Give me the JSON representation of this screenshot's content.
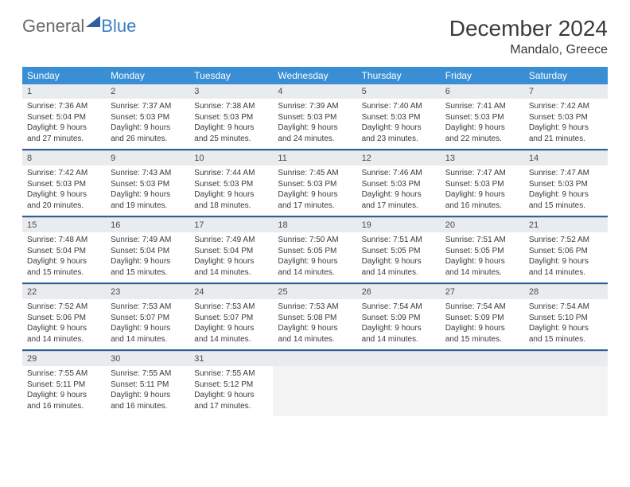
{
  "logo": {
    "text1": "General",
    "text2": "Blue"
  },
  "title": "December 2024",
  "location": "Mandalo, Greece",
  "colors": {
    "header_bg": "#3a8fd4",
    "header_text": "#ffffff",
    "daynum_bg": "#e9ecef",
    "row_divider": "#2d5f9a",
    "body_text": "#3a3a3a",
    "logo_gray": "#6a6a6a",
    "logo_blue": "#3a7fc4"
  },
  "day_headers": [
    "Sunday",
    "Monday",
    "Tuesday",
    "Wednesday",
    "Thursday",
    "Friday",
    "Saturday"
  ],
  "weeks": [
    [
      {
        "num": "1",
        "sunrise": "7:36 AM",
        "sunset": "5:04 PM",
        "daylight": "9 hours and 27 minutes."
      },
      {
        "num": "2",
        "sunrise": "7:37 AM",
        "sunset": "5:03 PM",
        "daylight": "9 hours and 26 minutes."
      },
      {
        "num": "3",
        "sunrise": "7:38 AM",
        "sunset": "5:03 PM",
        "daylight": "9 hours and 25 minutes."
      },
      {
        "num": "4",
        "sunrise": "7:39 AM",
        "sunset": "5:03 PM",
        "daylight": "9 hours and 24 minutes."
      },
      {
        "num": "5",
        "sunrise": "7:40 AM",
        "sunset": "5:03 PM",
        "daylight": "9 hours and 23 minutes."
      },
      {
        "num": "6",
        "sunrise": "7:41 AM",
        "sunset": "5:03 PM",
        "daylight": "9 hours and 22 minutes."
      },
      {
        "num": "7",
        "sunrise": "7:42 AM",
        "sunset": "5:03 PM",
        "daylight": "9 hours and 21 minutes."
      }
    ],
    [
      {
        "num": "8",
        "sunrise": "7:42 AM",
        "sunset": "5:03 PM",
        "daylight": "9 hours and 20 minutes."
      },
      {
        "num": "9",
        "sunrise": "7:43 AM",
        "sunset": "5:03 PM",
        "daylight": "9 hours and 19 minutes."
      },
      {
        "num": "10",
        "sunrise": "7:44 AM",
        "sunset": "5:03 PM",
        "daylight": "9 hours and 18 minutes."
      },
      {
        "num": "11",
        "sunrise": "7:45 AM",
        "sunset": "5:03 PM",
        "daylight": "9 hours and 17 minutes."
      },
      {
        "num": "12",
        "sunrise": "7:46 AM",
        "sunset": "5:03 PM",
        "daylight": "9 hours and 17 minutes."
      },
      {
        "num": "13",
        "sunrise": "7:47 AM",
        "sunset": "5:03 PM",
        "daylight": "9 hours and 16 minutes."
      },
      {
        "num": "14",
        "sunrise": "7:47 AM",
        "sunset": "5:03 PM",
        "daylight": "9 hours and 15 minutes."
      }
    ],
    [
      {
        "num": "15",
        "sunrise": "7:48 AM",
        "sunset": "5:04 PM",
        "daylight": "9 hours and 15 minutes."
      },
      {
        "num": "16",
        "sunrise": "7:49 AM",
        "sunset": "5:04 PM",
        "daylight": "9 hours and 15 minutes."
      },
      {
        "num": "17",
        "sunrise": "7:49 AM",
        "sunset": "5:04 PM",
        "daylight": "9 hours and 14 minutes."
      },
      {
        "num": "18",
        "sunrise": "7:50 AM",
        "sunset": "5:05 PM",
        "daylight": "9 hours and 14 minutes."
      },
      {
        "num": "19",
        "sunrise": "7:51 AM",
        "sunset": "5:05 PM",
        "daylight": "9 hours and 14 minutes."
      },
      {
        "num": "20",
        "sunrise": "7:51 AM",
        "sunset": "5:05 PM",
        "daylight": "9 hours and 14 minutes."
      },
      {
        "num": "21",
        "sunrise": "7:52 AM",
        "sunset": "5:06 PM",
        "daylight": "9 hours and 14 minutes."
      }
    ],
    [
      {
        "num": "22",
        "sunrise": "7:52 AM",
        "sunset": "5:06 PM",
        "daylight": "9 hours and 14 minutes."
      },
      {
        "num": "23",
        "sunrise": "7:53 AM",
        "sunset": "5:07 PM",
        "daylight": "9 hours and 14 minutes."
      },
      {
        "num": "24",
        "sunrise": "7:53 AM",
        "sunset": "5:07 PM",
        "daylight": "9 hours and 14 minutes."
      },
      {
        "num": "25",
        "sunrise": "7:53 AM",
        "sunset": "5:08 PM",
        "daylight": "9 hours and 14 minutes."
      },
      {
        "num": "26",
        "sunrise": "7:54 AM",
        "sunset": "5:09 PM",
        "daylight": "9 hours and 14 minutes."
      },
      {
        "num": "27",
        "sunrise": "7:54 AM",
        "sunset": "5:09 PM",
        "daylight": "9 hours and 15 minutes."
      },
      {
        "num": "28",
        "sunrise": "7:54 AM",
        "sunset": "5:10 PM",
        "daylight": "9 hours and 15 minutes."
      }
    ],
    [
      {
        "num": "29",
        "sunrise": "7:55 AM",
        "sunset": "5:11 PM",
        "daylight": "9 hours and 16 minutes."
      },
      {
        "num": "30",
        "sunrise": "7:55 AM",
        "sunset": "5:11 PM",
        "daylight": "9 hours and 16 minutes."
      },
      {
        "num": "31",
        "sunrise": "7:55 AM",
        "sunset": "5:12 PM",
        "daylight": "9 hours and 17 minutes."
      },
      null,
      null,
      null,
      null
    ]
  ],
  "labels": {
    "sunrise": "Sunrise:",
    "sunset": "Sunset:",
    "daylight": "Daylight:"
  }
}
